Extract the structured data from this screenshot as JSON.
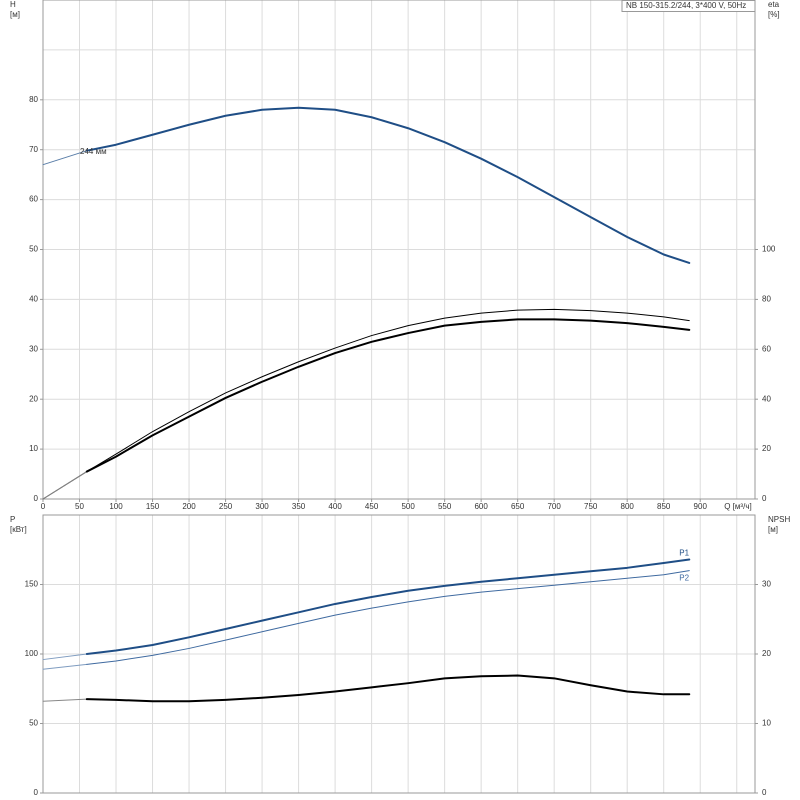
{
  "chart_data": [
    {
      "type": "line",
      "title": "NB 150-315.2/244, 3*400 V, 50Hz",
      "ylabel": [
        "H",
        "[м]"
      ],
      "y2label": [
        "eta",
        "[%]"
      ],
      "xlabel": "Q [м³/ч]",
      "annotation": "244 мм",
      "xlim": [
        0,
        975
      ],
      "xticks": [
        0,
        50,
        100,
        150,
        200,
        250,
        300,
        350,
        400,
        450,
        500,
        550,
        600,
        650,
        700,
        750,
        800,
        850,
        900
      ],
      "xgrid": [
        0,
        50,
        100,
        150,
        200,
        250,
        300,
        350,
        400,
        450,
        500,
        550,
        600,
        650,
        700,
        750,
        800,
        850,
        900,
        950
      ],
      "ylim": [
        0,
        100
      ],
      "yticks": [
        0,
        10,
        20,
        30,
        40,
        50,
        60,
        70,
        80
      ],
      "ygrid": [
        0,
        10,
        20,
        30,
        40,
        50,
        60,
        70,
        80,
        90,
        100
      ],
      "y2lim": [
        0,
        200
      ],
      "y2ticks": [
        0,
        20,
        40,
        60,
        80,
        100
      ],
      "x": [
        0,
        60,
        100,
        150,
        200,
        250,
        300,
        350,
        400,
        450,
        500,
        550,
        600,
        650,
        700,
        750,
        800,
        850,
        885
      ],
      "series": [
        {
          "color": "#5a7ea8",
          "linewidth": 1,
          "values": [
            67,
            69.8,
            null,
            null,
            null,
            null,
            null,
            null,
            null,
            null,
            null,
            null,
            null,
            null,
            null,
            null,
            null,
            null,
            null
          ]
        },
        {
          "color": "#1f4e86",
          "linewidth": 2,
          "values": [
            null,
            69.8,
            71,
            73,
            75,
            76.8,
            78,
            78.4,
            78,
            76.5,
            74.3,
            71.5,
            68.2,
            64.5,
            60.5,
            56.5,
            52.5,
            49,
            47.3
          ]
        },
        {
          "color": "#000000",
          "linewidth": 1,
          "axis": "y2",
          "values": [
            0,
            11,
            18,
            27,
            35,
            42.5,
            49,
            55,
            60.5,
            65.5,
            69.5,
            72.5,
            74.5,
            75.7,
            76,
            75.5,
            74.5,
            73,
            71.5
          ]
        },
        {
          "color": "#888888",
          "linewidth": 1,
          "axis": "y2",
          "values": [
            0,
            11,
            null,
            null,
            null,
            null,
            null,
            null,
            null,
            null,
            null,
            null,
            null,
            null,
            null,
            null,
            null,
            null,
            null
          ]
        },
        {
          "color": "#000000",
          "linewidth": 2,
          "axis": "y2",
          "values": [
            null,
            11,
            17,
            25.5,
            33,
            40.5,
            47,
            53,
            58.5,
            63,
            66.5,
            69.5,
            71,
            72,
            72,
            71.5,
            70.5,
            69,
            67.8
          ]
        }
      ]
    },
    {
      "type": "line",
      "ylabel": [
        "P",
        "[кВт]"
      ],
      "y2label": [
        "NPSH",
        "[м]"
      ],
      "xlim": [
        0,
        975
      ],
      "xgrid": [
        0,
        50,
        100,
        150,
        200,
        250,
        300,
        350,
        400,
        450,
        500,
        550,
        600,
        650,
        700,
        750,
        800,
        850,
        900,
        950
      ],
      "ylim": [
        0,
        200
      ],
      "yticks": [
        0,
        50,
        100,
        150
      ],
      "ygrid": [
        0,
        50,
        100,
        150,
        200
      ],
      "y2lim": [
        0,
        40
      ],
      "y2ticks": [
        0,
        10,
        20,
        30
      ],
      "x": [
        0,
        60,
        100,
        150,
        200,
        250,
        300,
        350,
        400,
        450,
        500,
        550,
        600,
        650,
        700,
        750,
        800,
        850,
        885
      ],
      "series": [
        {
          "color": "#7f9cc0",
          "linewidth": 1,
          "values": [
            96,
            100,
            null,
            null,
            null,
            null,
            null,
            null,
            null,
            null,
            null,
            null,
            null,
            null,
            null,
            null,
            null,
            null,
            null
          ]
        },
        {
          "name": "P1",
          "color": "#1f4e86",
          "linewidth": 2,
          "values": [
            null,
            100,
            102.5,
            106.5,
            112,
            118,
            124,
            130,
            136,
            141,
            145.5,
            149,
            152,
            154.5,
            157,
            159.5,
            162,
            165.5,
            168
          ]
        },
        {
          "color": "#7f9cc0",
          "linewidth": 1,
          "values": [
            89,
            92.5,
            null,
            null,
            null,
            null,
            null,
            null,
            null,
            null,
            null,
            null,
            null,
            null,
            null,
            null,
            null,
            null,
            null
          ]
        },
        {
          "name": "P2",
          "color": "#3f6aa0",
          "linewidth": 1,
          "values": [
            null,
            92.5,
            95,
            99,
            104,
            110,
            116,
            122,
            128,
            133,
            137.5,
            141.5,
            144.5,
            147,
            149.5,
            152,
            154.5,
            157,
            160
          ]
        },
        {
          "color": "#888888",
          "linewidth": 1,
          "axis": "y2",
          "values": [
            13.2,
            13.5,
            null,
            null,
            null,
            null,
            null,
            null,
            null,
            null,
            null,
            null,
            null,
            null,
            null,
            null,
            null,
            null,
            null
          ]
        },
        {
          "color": "#000000",
          "linewidth": 2,
          "axis": "y2",
          "values": [
            null,
            13.5,
            13.4,
            13.2,
            13.2,
            13.4,
            13.7,
            14.1,
            14.6,
            15.2,
            15.8,
            16.5,
            16.8,
            16.9,
            16.5,
            15.5,
            14.6,
            14.2,
            14.2
          ]
        }
      ]
    }
  ]
}
